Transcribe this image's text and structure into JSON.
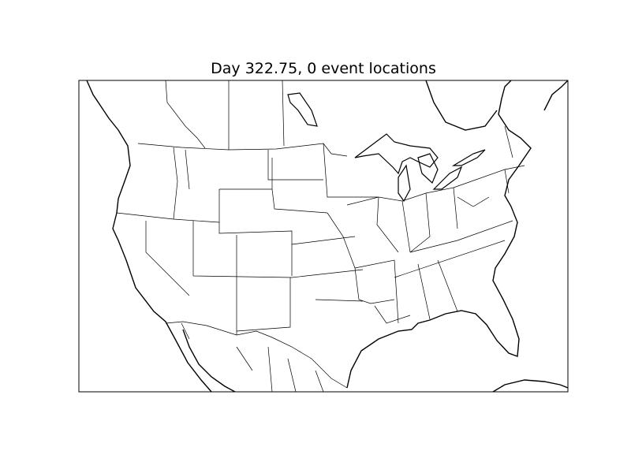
{
  "title": "Day 322.75, 0 event locations",
  "map": {
    "projection": "basemap",
    "region": "North America (contiguous US)",
    "layers": [
      "coastlines",
      "country borders",
      "state borders"
    ],
    "event_count": 0,
    "line_color": "#000000",
    "background": "#ffffff"
  }
}
